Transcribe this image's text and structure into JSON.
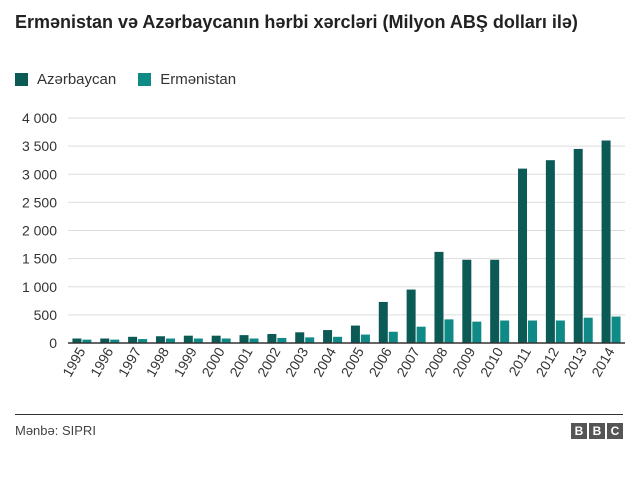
{
  "title": "Ermənistan və Azərbaycanın hərbi xərcləri (Milyon ABŞ dolları ilə)",
  "source": "Mənbə: SIPRI",
  "logo": [
    "B",
    "B",
    "C"
  ],
  "colors": {
    "azerbaijan": "#0b5a56",
    "armenia": "#0f8a86",
    "grid": "#dddddd",
    "axis": "#333333"
  },
  "chart_data": {
    "type": "bar",
    "title": "Ermənistan və Azərbaycanın hərbi xərcləri (Milyon ABŞ dolları ilə)",
    "xlabel": "",
    "ylabel": "",
    "ylim": [
      0,
      4000
    ],
    "yticks": [
      0,
      500,
      1000,
      1500,
      2000,
      2500,
      3000,
      3500,
      4000
    ],
    "ytick_labels": [
      "0",
      "500",
      "1 000",
      "1 500",
      "2 000",
      "2 500",
      "3 000",
      "3 500",
      "4 000"
    ],
    "legend_position": "top-left",
    "grid": true,
    "categories": [
      "1995",
      "1996",
      "1997",
      "1998",
      "1999",
      "2000",
      "2001",
      "2002",
      "2003",
      "2004",
      "2005",
      "2006",
      "2007",
      "2008",
      "2009",
      "2010",
      "2011",
      "2012",
      "2013",
      "2014"
    ],
    "series": [
      {
        "name": "Azərbaycan",
        "color": "#0b5a56",
        "values": [
          80,
          80,
          110,
          120,
          130,
          130,
          140,
          160,
          190,
          230,
          310,
          730,
          950,
          1620,
          1480,
          1480,
          3100,
          3250,
          3450,
          3600
        ]
      },
      {
        "name": "Ermənistan",
        "color": "#0f8a86",
        "values": [
          60,
          60,
          70,
          80,
          80,
          80,
          80,
          90,
          100,
          110,
          150,
          200,
          290,
          420,
          380,
          400,
          400,
          400,
          450,
          470
        ]
      }
    ]
  }
}
